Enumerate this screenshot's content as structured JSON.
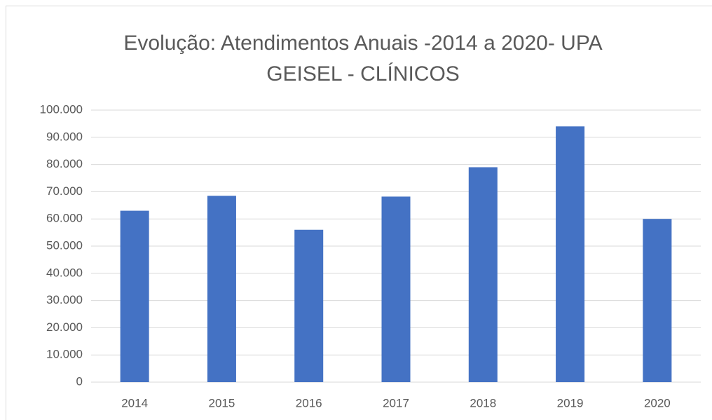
{
  "chart_data": {
    "type": "bar",
    "title": "Evolução: Atendimentos Anuais -2014 a 2020- UPA GEISEL - CLÍNICOS",
    "categories": [
      "2014",
      "2015",
      "2016",
      "2017",
      "2018",
      "2019",
      "2020"
    ],
    "values": [
      63000,
      68500,
      56000,
      68200,
      79000,
      94000,
      60000
    ],
    "color": "#4472c4",
    "ylim": [
      0,
      100000
    ],
    "yticks": [
      0,
      {
        "value": 10000,
        "label": "10.000"
      },
      {
        "value": 20000,
        "label": "20.000"
      },
      {
        "value": 30000,
        "label": "30.000"
      },
      {
        "value": 40000,
        "label": "40.000"
      },
      {
        "value": 50000,
        "label": "50.000"
      },
      {
        "value": 60000,
        "label": "60.000"
      },
      {
        "value": 70000,
        "label": "70.000"
      },
      {
        "value": 80000,
        "label": "80.000"
      },
      {
        "value": 90000,
        "label": "90.000"
      },
      {
        "value": 100000,
        "label": "100.000"
      }
    ],
    "grid": true
  }
}
